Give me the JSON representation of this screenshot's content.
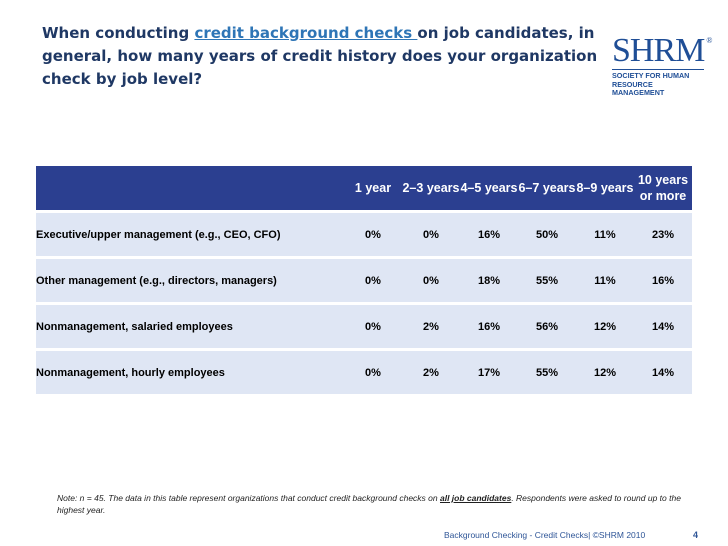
{
  "title": {
    "part1": "When conducting ",
    "highlight": "credit background checks ",
    "part2": "on job candidates, in general, how many years of credit history does your organization check by job level?"
  },
  "logo": {
    "wordmark": "SHRM",
    "reg": "®",
    "tagline1": "Society for Human",
    "tagline2": "Resource Management"
  },
  "table": {
    "headers": [
      "",
      "1 year",
      "2–3 years",
      "4–5 years",
      "6–7 years",
      "8–9 years",
      "10 years or more"
    ],
    "rows": [
      {
        "label": "Executive/upper management (e.g., CEO, CFO)",
        "values": [
          "0%",
          "0%",
          "16%",
          "50%",
          "11%",
          "23%"
        ]
      },
      {
        "label": "Other management (e.g., directors, managers)",
        "values": [
          "0%",
          "0%",
          "18%",
          "55%",
          "11%",
          "16%"
        ]
      },
      {
        "label": "Nonmanagement, salaried employees",
        "values": [
          "0%",
          "2%",
          "16%",
          "56%",
          "12%",
          "14%"
        ]
      },
      {
        "label": "Nonmanagement, hourly employees",
        "values": [
          "0%",
          "2%",
          "17%",
          "55%",
          "12%",
          "14%"
        ]
      }
    ]
  },
  "note": {
    "part1": "Note: n = 45. The data in this table represent organizations that conduct credit background checks on ",
    "emph": "all job candidates",
    "part2": ". Respondents were asked to round up to the highest year."
  },
  "footer": {
    "text": "Background Checking  - Credit Checks| ©SHRM 2010",
    "page": "4"
  },
  "colors": {
    "header_bg": "#2b3f90",
    "row_bg": "#dfe6f4",
    "title": "#1f3864",
    "accent": "#2e75b6"
  }
}
